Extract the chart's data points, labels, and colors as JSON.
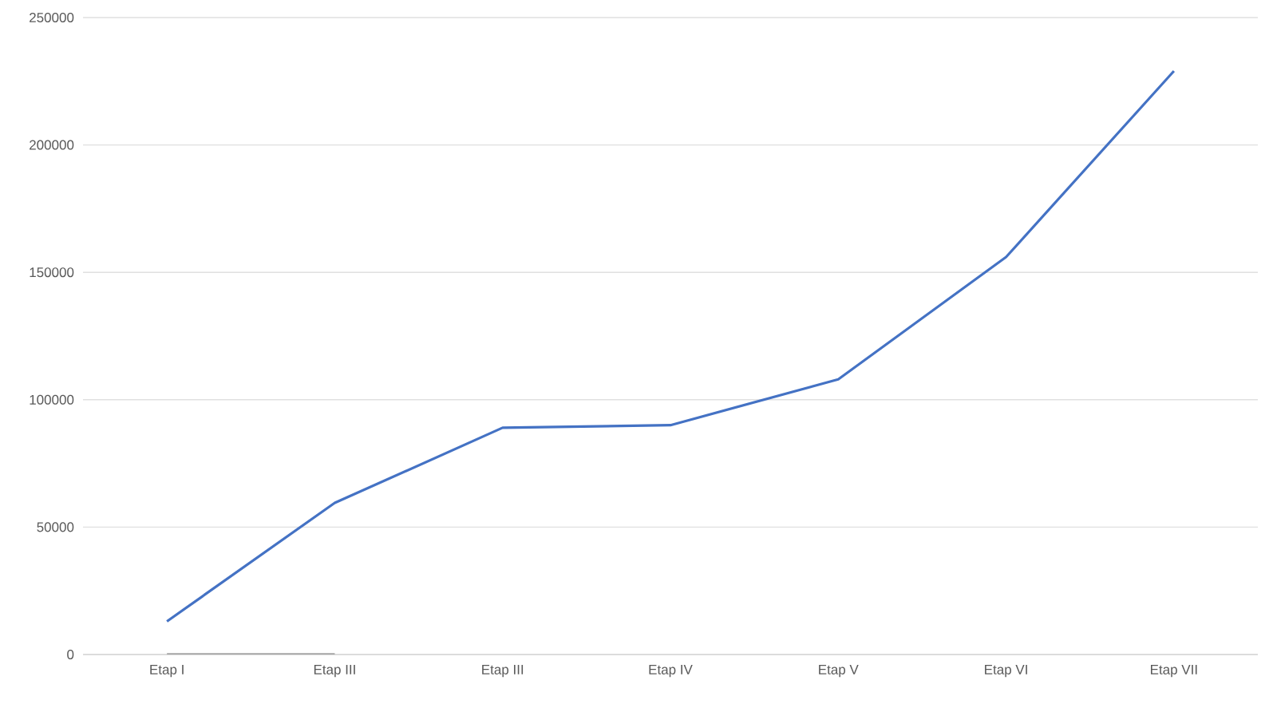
{
  "chart_data": {
    "type": "line",
    "categories": [
      "Etap I",
      "Etap III",
      "Etap III",
      "Etap IV",
      "Etap V",
      "Etap VI",
      "Etap VII"
    ],
    "series": [
      {
        "color": "#4472c4",
        "values": [
          13000,
          59500,
          89000,
          90000,
          108000,
          156000,
          229000
        ]
      },
      {
        "color": "#a5a5a5",
        "values": [
          0,
          0,
          null,
          null,
          null,
          null,
          null
        ]
      }
    ],
    "ylim": [
      0,
      250000
    ],
    "yticks": [
      0,
      50000,
      100000,
      150000,
      200000,
      250000
    ],
    "grid": "y",
    "marker": "none",
    "line_style": "solid"
  }
}
